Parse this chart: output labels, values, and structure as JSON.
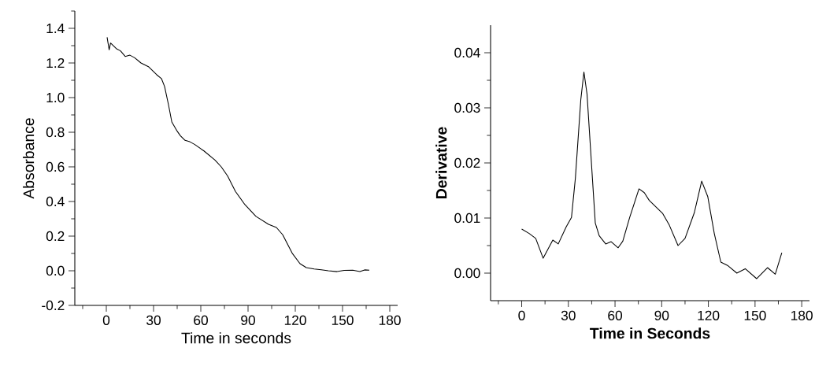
{
  "chart_data": [
    {
      "type": "line",
      "xlabel": "Time in seconds",
      "ylabel": "Absorbance",
      "color": "#000000",
      "x": [
        0.5,
        1.8,
        2.7,
        6.3,
        9,
        12,
        15,
        18,
        22,
        27,
        32,
        35,
        37,
        39.5,
        41.6,
        45,
        47,
        50,
        53,
        56,
        62,
        69,
        73,
        77,
        82,
        88,
        95,
        103,
        108,
        112,
        118,
        123,
        127,
        132,
        136.5,
        141,
        146.5,
        151,
        156.5,
        161,
        164,
        167
      ],
      "values": [
        1.348,
        1.276,
        1.315,
        1.283,
        1.27,
        1.238,
        1.245,
        1.23,
        1.2,
        1.177,
        1.132,
        1.11,
        1.064,
        0.958,
        0.859,
        0.806,
        0.78,
        0.753,
        0.745,
        0.73,
        0.692,
        0.639,
        0.6,
        0.548,
        0.458,
        0.382,
        0.314,
        0.268,
        0.25,
        0.208,
        0.102,
        0.041,
        0.018,
        0.01,
        0.006,
        0.0,
        -0.005,
        0.002,
        0.003,
        -0.005,
        0.005,
        0.003
      ],
      "xlim": [
        -20,
        185
      ],
      "ylim": [
        -0.2,
        1.5
      ],
      "xticks": [
        {
          "value": -15,
          "label": null
        },
        0,
        {
          "value": 15,
          "label": null
        },
        30,
        {
          "value": 45,
          "label": null
        },
        60,
        {
          "value": 75,
          "label": null
        },
        90,
        {
          "value": 105,
          "label": null
        },
        120,
        {
          "value": 135,
          "label": null
        },
        150,
        {
          "value": 165,
          "label": null
        },
        180
      ],
      "yticks": [
        {
          "value": -0.2,
          "label": "-0.2"
        },
        {
          "value": -0.1,
          "label": null
        },
        {
          "value": 0,
          "label": "0.0"
        },
        {
          "value": 0.1,
          "label": null
        },
        {
          "value": 0.2,
          "label": "0.2"
        },
        {
          "value": 0.3,
          "label": null
        },
        {
          "value": 0.4,
          "label": "0.4"
        },
        {
          "value": 0.5,
          "label": null
        },
        {
          "value": 0.6,
          "label": "0.6"
        },
        {
          "value": 0.7,
          "label": null
        },
        {
          "value": 0.8,
          "label": "0.8"
        },
        {
          "value": 0.9,
          "label": null
        },
        {
          "value": 1.0,
          "label": "1.0"
        },
        {
          "value": 1.1,
          "label": null
        },
        {
          "value": 1.2,
          "label": "1.2"
        },
        {
          "value": 1.3,
          "label": null
        },
        {
          "value": 1.4,
          "label": "1.4"
        },
        {
          "value": 1.5,
          "label": null
        }
      ]
    },
    {
      "type": "line",
      "xlabel": "Time in Seconds",
      "ylabel": "Derivative",
      "color": "#000000",
      "x": [
        0,
        4.8,
        9,
        13.8,
        20,
        23.5,
        28.6,
        32,
        34.5,
        38,
        40,
        42,
        44.8,
        47.3,
        49.8,
        54,
        57.5,
        62,
        65,
        69.4,
        75.4,
        78.8,
        82,
        90.7,
        94.9,
        100.5,
        105,
        111,
        115.7,
        119.6,
        123.8,
        128,
        132.3,
        138.3,
        143.7,
        151,
        158,
        163,
        167.2
      ],
      "values": [
        0.008,
        0.0072,
        0.0063,
        0.0027,
        0.006,
        0.0053,
        0.0084,
        0.0101,
        0.0172,
        0.0315,
        0.0365,
        0.0325,
        0.0201,
        0.0091,
        0.0068,
        0.0053,
        0.0057,
        0.0046,
        0.0058,
        0.0101,
        0.0153,
        0.0146,
        0.0132,
        0.0108,
        0.0087,
        0.005,
        0.0063,
        0.011,
        0.0167,
        0.0139,
        0.0072,
        0.002,
        0.0014,
        0.0,
        0.0008,
        -0.001,
        0.001,
        -0.0002,
        0.0037
      ],
      "xlim": [
        -20,
        185
      ],
      "ylim": [
        -0.005,
        0.045
      ],
      "xticks": [
        {
          "value": -15,
          "label": null
        },
        0,
        {
          "value": 15,
          "label": null
        },
        30,
        {
          "value": 45,
          "label": null
        },
        60,
        {
          "value": 75,
          "label": null
        },
        90,
        {
          "value": 105,
          "label": null
        },
        120,
        {
          "value": 135,
          "label": null
        },
        150,
        {
          "value": 165,
          "label": null
        },
        180
      ],
      "yticks": [
        {
          "value": 0,
          "label": "0.00"
        },
        {
          "value": 0.005,
          "label": null
        },
        {
          "value": 0.01,
          "label": "0.01"
        },
        {
          "value": 0.015,
          "label": null
        },
        {
          "value": 0.02,
          "label": "0.02"
        },
        {
          "value": 0.025,
          "label": null
        },
        {
          "value": 0.03,
          "label": "0.03"
        },
        {
          "value": 0.035,
          "label": null
        },
        {
          "value": 0.04,
          "label": "0.04"
        }
      ]
    }
  ]
}
